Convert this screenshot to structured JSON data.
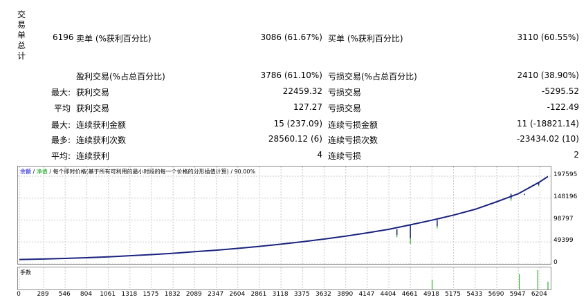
{
  "report": {
    "side_label_chars": [
      "交",
      "易",
      "单",
      "总",
      "计"
    ],
    "total_trades": "6196",
    "rows": [
      {
        "prefix": "",
        "left_label": "卖单 (%获利百分比)",
        "left_value": "3086 (61.67%)",
        "right_label": "买单 (%获利百分比)",
        "right_value": "3110 (60.55%)"
      },
      {
        "prefix": "",
        "left_label": "盈利交易(%占总百分比)",
        "left_value": "3786 (61.10%)",
        "right_label": "亏损交易(%占总百分比)",
        "right_value": "2410 (38.90%)"
      },
      {
        "prefix": "最大:",
        "left_label": "获利交易",
        "left_value": "22459.32",
        "right_label": "亏损交易",
        "right_value": "-5295.52"
      },
      {
        "prefix": "平均",
        "left_label": "获利交易",
        "left_value": "127.27",
        "right_label": "亏损交易",
        "right_value": "-122.49"
      },
      {
        "prefix": "最大:",
        "left_label": "连续获利金额",
        "left_value": "15 (237.09)",
        "right_label": "连续亏损金额",
        "right_value": "11 (-18821.14)"
      },
      {
        "prefix": "最多:",
        "left_label": "连续获利次数",
        "left_value": "28560.12 (6)",
        "right_label": "连续亏损次数",
        "right_value": "-23434.02 (10)"
      },
      {
        "prefix": "平均:",
        "left_label": "连续获利",
        "left_value": "4",
        "right_label": "连续亏损",
        "right_value": "2"
      }
    ]
  },
  "chart": {
    "legend_balance": "余额",
    "legend_sep": " / ",
    "legend_equity": "净值",
    "legend_rest": " / 每个即时价格(基于所有可利用的最小时段的每一个价格的分形插值计算) / 90.00%",
    "lots_label": "手数",
    "colors": {
      "balance": "#1a237e",
      "equity": "#00a000",
      "grid": "#c8c8c8",
      "legend_balance": "#0000cc",
      "legend_equity": "#00a000"
    }
  },
  "chart_data": {
    "type": "line",
    "y_ticks": [
      "197595",
      "148196",
      "98797",
      "49399",
      "0"
    ],
    "y_tick_values": [
      197595,
      148196,
      98797,
      49399,
      0
    ],
    "ylim": [
      0,
      197595
    ],
    "x_ticks": [
      "0",
      "289",
      "546",
      "804",
      "1061",
      "1318",
      "1575",
      "1832",
      "2089",
      "2347",
      "2604",
      "2861",
      "3118",
      "3375",
      "3632",
      "3890",
      "4147",
      "4404",
      "4661",
      "4918",
      "5175",
      "5433",
      "5690",
      "5947",
      "6204"
    ],
    "xlim": [
      0,
      6300
    ],
    "balance_points": [
      [
        0,
        10000
      ],
      [
        289,
        11000
      ],
      [
        546,
        12500
      ],
      [
        804,
        14000
      ],
      [
        1061,
        16000
      ],
      [
        1318,
        18500
      ],
      [
        1575,
        21000
      ],
      [
        1832,
        24000
      ],
      [
        2089,
        27500
      ],
      [
        2347,
        31000
      ],
      [
        2604,
        35000
      ],
      [
        2861,
        39500
      ],
      [
        3118,
        44500
      ],
      [
        3375,
        50000
      ],
      [
        3632,
        56000
      ],
      [
        3890,
        62500
      ],
      [
        4147,
        70000
      ],
      [
        4404,
        78000
      ],
      [
        4661,
        88000
      ],
      [
        4918,
        98500
      ],
      [
        5175,
        110000
      ],
      [
        5433,
        123000
      ],
      [
        5690,
        140000
      ],
      [
        5947,
        158000
      ],
      [
        6204,
        185000
      ],
      [
        6300,
        197000
      ]
    ],
    "equity_dips": [
      [
        4500,
        60000
      ],
      [
        4660,
        45000
      ],
      [
        4980,
        80000
      ],
      [
        5860,
        142000
      ],
      [
        6020,
        155000
      ],
      [
        6190,
        175000
      ]
    ],
    "lots_bars": [
      [
        4920,
        0.5
      ],
      [
        5960,
        0.8
      ],
      [
        6180,
        1.0
      ],
      [
        6300,
        0.4
      ]
    ]
  }
}
